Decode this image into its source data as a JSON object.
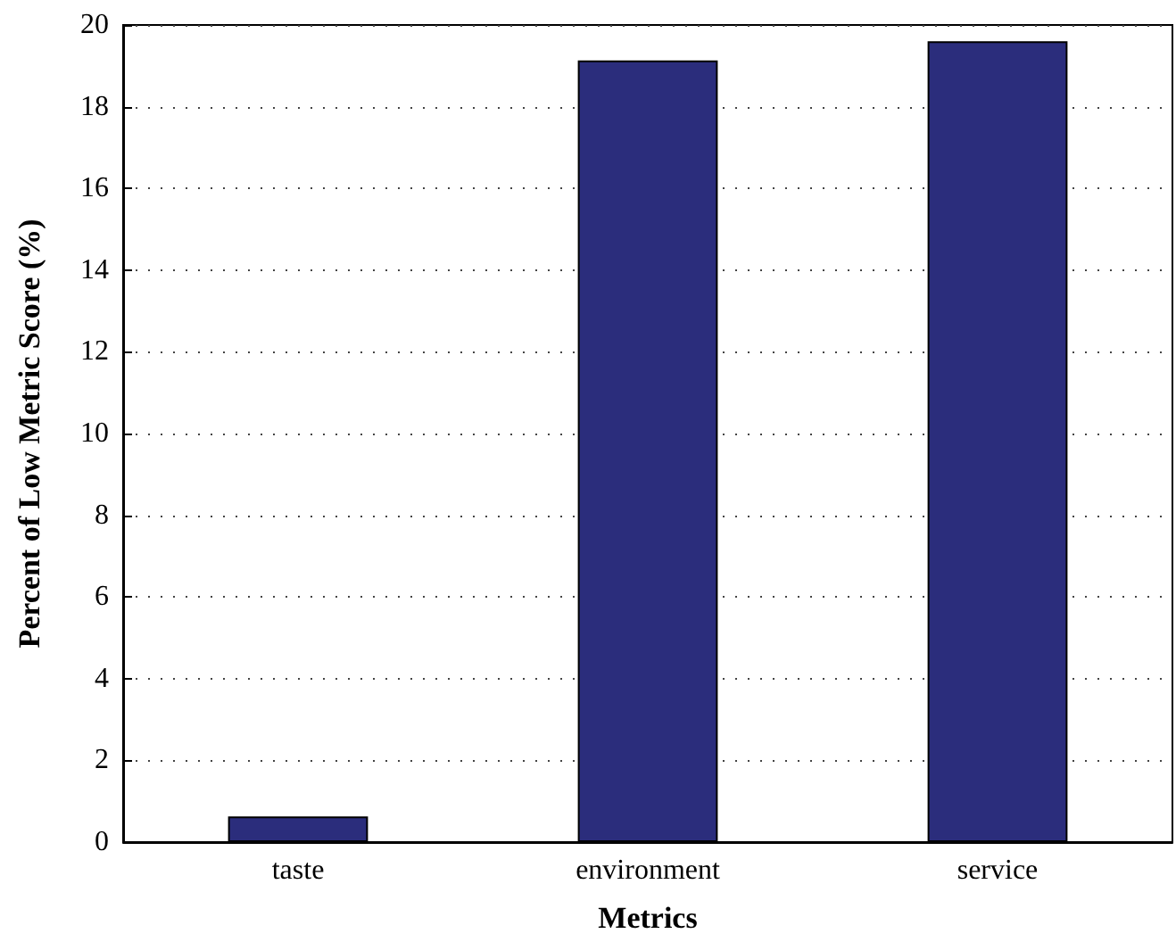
{
  "chart_data": {
    "type": "bar",
    "xlabel": "Metrics",
    "ylabel": "Percent of Low Metric Score (%)",
    "categories": [
      "taste",
      "environment",
      "service"
    ],
    "values": [
      0.63,
      19.13,
      19.6
    ],
    "color": "#2b2d7c",
    "ylim": [
      0,
      20
    ],
    "yticks": [
      0,
      2,
      4,
      6,
      8,
      10,
      12,
      14,
      16,
      18,
      20
    ],
    "grid": "y"
  }
}
